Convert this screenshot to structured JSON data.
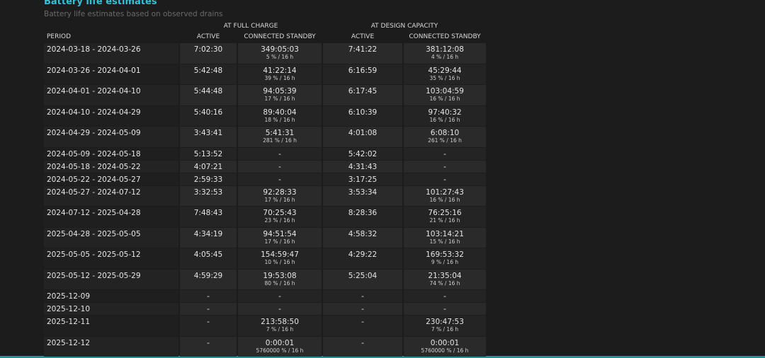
{
  "header": {
    "title": "Battery life estimates",
    "subtitle": "Battery life estimates based on observed drains"
  },
  "table": {
    "groups": [
      "AT FULL CHARGE",
      "AT DESIGN CAPACITY"
    ],
    "columns": [
      "PERIOD",
      "ACTIVE",
      "CONNECTED STANDBY",
      "ACTIVE",
      "CONNECTED STANDBY"
    ],
    "rows": [
      {
        "period": "2024-03-18 - 2024-03-26",
        "full_active": "7:02:30",
        "full_standby": "349:05:03",
        "full_rate": "5 % / 16 h",
        "design_active": "7:41:22",
        "design_standby": "381:12:08",
        "design_rate": "4 % / 16 h"
      },
      {
        "period": "2024-03-26 - 2024-04-01",
        "full_active": "5:42:48",
        "full_standby": "41:22:14",
        "full_rate": "39 % / 16 h",
        "design_active": "6:16:59",
        "design_standby": "45:29:44",
        "design_rate": "35 % / 16 h"
      },
      {
        "period": "2024-04-01 - 2024-04-10",
        "full_active": "5:44:48",
        "full_standby": "94:05:39",
        "full_rate": "17 % / 16 h",
        "design_active": "6:17:45",
        "design_standby": "103:04:59",
        "design_rate": "16 % / 16 h"
      },
      {
        "period": "2024-04-10 - 2024-04-29",
        "full_active": "5:40:16",
        "full_standby": "89:40:04",
        "full_rate": "18 % / 16 h",
        "design_active": "6:10:39",
        "design_standby": "97:40:32",
        "design_rate": "16 % / 16 h"
      },
      {
        "period": "2024-04-29 - 2024-05-09",
        "full_active": "3:43:41",
        "full_standby": "5:41:31",
        "full_rate": "281 % / 16 h",
        "design_active": "4:01:08",
        "design_standby": "6:08:10",
        "design_rate": "261 % / 16 h"
      },
      {
        "period": "2024-05-09 - 2024-05-18",
        "full_active": "5:13:52",
        "full_standby": "-",
        "design_active": "5:42:02",
        "design_standby": "-"
      },
      {
        "period": "2024-05-18 - 2024-05-22",
        "full_active": "4:07:21",
        "full_standby": "-",
        "design_active": "4:31:43",
        "design_standby": "-"
      },
      {
        "period": "2024-05-22 - 2024-05-27",
        "full_active": "2:59:33",
        "full_standby": "-",
        "design_active": "3:17:25",
        "design_standby": "-"
      },
      {
        "period": "2024-05-27 - 2024-07-12",
        "full_active": "3:32:53",
        "full_standby": "92:28:33",
        "full_rate": "17 % / 16 h",
        "design_active": "3:53:34",
        "design_standby": "101:27:43",
        "design_rate": "16 % / 16 h"
      },
      {
        "period": "2024-07-12 - 2025-04-28",
        "full_active": "7:48:43",
        "full_standby": "70:25:43",
        "full_rate": "23 % / 16 h",
        "design_active": "8:28:36",
        "design_standby": "76:25:16",
        "design_rate": "21 % / 16 h"
      },
      {
        "period": "2025-04-28 - 2025-05-05",
        "full_active": "4:34:19",
        "full_standby": "94:51:54",
        "full_rate": "17 % / 16 h",
        "design_active": "4:58:32",
        "design_standby": "103:14:21",
        "design_rate": "15 % / 16 h"
      },
      {
        "period": "2025-05-05 - 2025-05-12",
        "full_active": "4:05:45",
        "full_standby": "154:59:47",
        "full_rate": "10 % / 16 h",
        "design_active": "4:29:22",
        "design_standby": "169:53:32",
        "design_rate": "9 % / 16 h"
      },
      {
        "period": "2025-05-12 - 2025-05-29",
        "full_active": "4:59:29",
        "full_standby": "19:53:08",
        "full_rate": "80 % / 16 h",
        "design_active": "5:25:04",
        "design_standby": "21:35:04",
        "design_rate": "74 % / 16 h"
      },
      {
        "period": "2025-12-09",
        "full_active": "-",
        "full_standby": "-",
        "design_active": "-",
        "design_standby": "-"
      },
      {
        "period": "2025-12-10",
        "full_active": "-",
        "full_standby": "-",
        "design_active": "-",
        "design_standby": "-"
      },
      {
        "period": "2025-12-11",
        "full_active": "-",
        "full_standby": "213:58:50",
        "full_rate": "7 % / 16 h",
        "design_active": "-",
        "design_standby": "230:47:53",
        "design_rate": "7 % / 16 h"
      },
      {
        "period": "2025-12-12",
        "full_active": "-",
        "full_standby": "0:00:01",
        "full_rate": "5760000 % / 16 h",
        "design_active": "-",
        "design_standby": "0:00:01",
        "design_rate": "5760000 % / 16 h"
      }
    ]
  }
}
